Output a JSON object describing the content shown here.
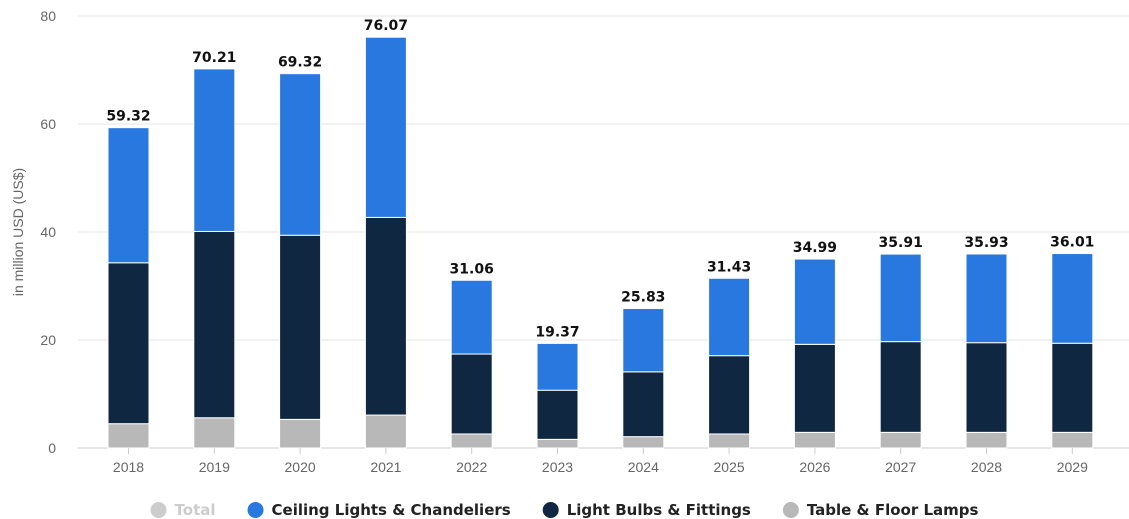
{
  "chart_data": {
    "type": "bar",
    "stacked": true,
    "categories": [
      "2018",
      "2019",
      "2020",
      "2021",
      "2022",
      "2023",
      "2024",
      "2025",
      "2026",
      "2027",
      "2028",
      "2029"
    ],
    "series": [
      {
        "name": "Table & Floor Lamps",
        "color": "#b8b8b8",
        "values": [
          4.5,
          5.6,
          5.3,
          6.1,
          2.6,
          1.6,
          2.1,
          2.6,
          2.9,
          2.9,
          2.9,
          2.9
        ]
      },
      {
        "name": "Light Bulbs & Fittings",
        "color": "#0f2740",
        "values": [
          29.8,
          34.5,
          34.1,
          36.6,
          14.8,
          9.1,
          12.0,
          14.5,
          16.3,
          16.8,
          16.6,
          16.5
        ]
      },
      {
        "name": "Ceiling Lights & Chandeliers",
        "color": "#2878df",
        "values": [
          25.02,
          30.11,
          29.92,
          33.37,
          13.66,
          8.67,
          11.73,
          14.33,
          15.79,
          16.21,
          16.43,
          16.61
        ]
      }
    ],
    "totals": [
      "59.32",
      "70.21",
      "69.32",
      "76.07",
      "31.06",
      "19.37",
      "25.83",
      "31.43",
      "34.99",
      "35.91",
      "35.93",
      "36.01"
    ],
    "ylabel": "in million USD (US$)",
    "ylim": [
      0,
      80
    ],
    "yticks": [
      "0",
      "20",
      "40",
      "60",
      "80"
    ],
    "grid": true,
    "legend_position": "bottom",
    "legend": [
      {
        "name": "Total",
        "color": "#cccccc",
        "active": false
      },
      {
        "name": "Ceiling Lights & Chandeliers",
        "color": "#2878df",
        "active": true
      },
      {
        "name": "Light Bulbs & Fittings",
        "color": "#0f2740",
        "active": true
      },
      {
        "name": "Table & Floor Lamps",
        "color": "#b8b8b8",
        "active": true
      }
    ]
  }
}
